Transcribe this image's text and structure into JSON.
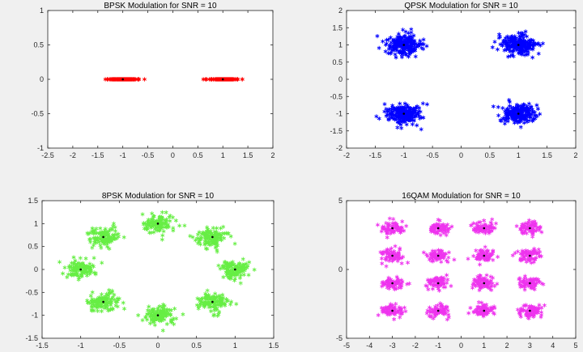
{
  "figure": {
    "background": "#f0f0f0",
    "axes_background": "#ffffff",
    "axis_color": "#262626"
  },
  "chart_data": [
    {
      "type": "scatter",
      "title": "BPSK Modulation for SNR = 10",
      "xlim": [
        -2.5,
        2
      ],
      "ylim": [
        -1,
        1
      ],
      "xticks": [
        -2.5,
        -2,
        -1.5,
        -1,
        -0.5,
        0,
        0.5,
        1,
        1.5,
        2
      ],
      "yticks": [
        -1,
        -0.5,
        0,
        0.5,
        1
      ],
      "xticklabels": [
        "-2.5",
        "-2",
        "-1.5",
        "-1",
        "-0.5",
        "0",
        "0.5",
        "1",
        "1.5",
        "2"
      ],
      "yticklabels": [
        "-1",
        "-0.5",
        "0",
        "0.5",
        "1"
      ],
      "series": [
        {
          "role": "received",
          "marker": "*",
          "color": "#ff0000",
          "cluster_centers": [
            [
              -1,
              0
            ],
            [
              1,
              0
            ]
          ],
          "spread_x": 0.3,
          "spread_y": 0,
          "points_per_cluster": 140
        },
        {
          "role": "ideal",
          "marker": ".",
          "color": "#000000",
          "points": [
            [
              -1,
              0
            ],
            [
              1,
              0
            ]
          ]
        }
      ],
      "grid": false
    },
    {
      "type": "scatter",
      "title": "QPSK Modulation for SNR = 10",
      "xlim": [
        -2,
        2
      ],
      "ylim": [
        -2,
        2
      ],
      "xticks": [
        -2,
        -1.5,
        -1,
        -0.5,
        0,
        0.5,
        1,
        1.5,
        2
      ],
      "yticks": [
        -2,
        -1.5,
        -1,
        -0.5,
        0,
        0.5,
        1,
        1.5,
        2
      ],
      "xticklabels": [
        "-2",
        "-1.5",
        "-1",
        "-0.5",
        "0",
        "0.5",
        "1",
        "1.5",
        "2"
      ],
      "yticklabels": [
        "-2",
        "-1.5",
        "-1",
        "-0.5",
        "0",
        "0.5",
        "1",
        "1.5",
        "2"
      ],
      "series": [
        {
          "role": "received",
          "marker": "*",
          "color": "#0000ff",
          "cluster_centers": [
            [
              -1,
              1
            ],
            [
              1,
              1
            ],
            [
              -1,
              -1
            ],
            [
              1,
              -1
            ]
          ],
          "spread_x": 0.3,
          "spread_y": 0.3,
          "points_per_cluster": 220
        },
        {
          "role": "ideal",
          "marker": ".",
          "color": "#000000",
          "points": [
            [
              -1,
              1
            ],
            [
              1,
              1
            ],
            [
              -1,
              -1
            ],
            [
              1,
              -1
            ]
          ]
        }
      ],
      "grid": false
    },
    {
      "type": "scatter",
      "title": "8PSK Modulation for SNR = 10",
      "xlim": [
        -1.5,
        1.5
      ],
      "ylim": [
        -1.5,
        1.5
      ],
      "xticks": [
        -1.5,
        -1,
        -0.5,
        0,
        0.5,
        1,
        1.5
      ],
      "yticks": [
        -1.5,
        -1,
        -0.5,
        0,
        0.5,
        1,
        1.5
      ],
      "xticklabels": [
        "-1.5",
        "-1",
        "-0.5",
        "0",
        "0.5",
        "1",
        "1.5"
      ],
      "yticklabels": [
        "-1.5",
        "-1",
        "-0.5",
        "0",
        "0.5",
        "1",
        "1.5"
      ],
      "series": [
        {
          "role": "received",
          "marker": "*",
          "color": "#66ee44",
          "cluster_centers": [
            [
              1,
              0
            ],
            [
              0.707,
              0.707
            ],
            [
              0,
              1
            ],
            [
              -0.707,
              0.707
            ],
            [
              -1,
              0
            ],
            [
              -0.707,
              -0.707
            ],
            [
              0,
              -1
            ],
            [
              0.707,
              -0.707
            ]
          ],
          "spread_x": 0.2,
          "spread_y": 0.2,
          "points_per_cluster": 120
        },
        {
          "role": "ideal",
          "marker": ".",
          "color": "#000000",
          "points": [
            [
              1,
              0
            ],
            [
              0.707,
              0.707
            ],
            [
              0,
              1
            ],
            [
              -0.707,
              0.707
            ],
            [
              -1,
              0
            ],
            [
              -0.707,
              -0.707
            ],
            [
              0,
              -1
            ],
            [
              0.707,
              -0.707
            ]
          ]
        }
      ],
      "grid": false
    },
    {
      "type": "scatter",
      "title": "16QAM Modulation for SNR = 10",
      "xlim": [
        -5,
        5
      ],
      "ylim": [
        -5,
        5
      ],
      "xticks": [
        -5,
        -4,
        -3,
        -2,
        -1,
        0,
        1,
        2,
        3,
        4,
        5
      ],
      "yticks": [
        -5,
        0,
        5
      ],
      "xticklabels": [
        "-5",
        "-4",
        "-3",
        "-2",
        "-1",
        "0",
        "1",
        "2",
        "3",
        "4",
        "5"
      ],
      "yticklabels": [
        "-5",
        "0",
        "5"
      ],
      "series": [
        {
          "role": "received",
          "marker": "*",
          "color": "#ee33ee",
          "cluster_centers": [
            [
              -3,
              3
            ],
            [
              -1,
              3
            ],
            [
              1,
              3
            ],
            [
              3,
              3
            ],
            [
              -3,
              1
            ],
            [
              -1,
              1
            ],
            [
              1,
              1
            ],
            [
              3,
              1
            ],
            [
              -3,
              -1
            ],
            [
              -1,
              -1
            ],
            [
              1,
              -1
            ],
            [
              3,
              -1
            ],
            [
              -3,
              -3
            ],
            [
              -1,
              -3
            ],
            [
              1,
              -3
            ],
            [
              3,
              -3
            ]
          ],
          "spread_x": 0.5,
          "spread_y": 0.45,
          "points_per_cluster": 70
        },
        {
          "role": "ideal",
          "marker": ".",
          "color": "#000000",
          "points": [
            [
              -3,
              3
            ],
            [
              -1,
              3
            ],
            [
              1,
              3
            ],
            [
              3,
              3
            ],
            [
              -3,
              1
            ],
            [
              -1,
              1
            ],
            [
              1,
              1
            ],
            [
              3,
              1
            ],
            [
              -3,
              -1
            ],
            [
              -1,
              -1
            ],
            [
              1,
              -1
            ],
            [
              3,
              -1
            ],
            [
              -3,
              -3
            ],
            [
              -1,
              -3
            ],
            [
              1,
              -3
            ],
            [
              3,
              -3
            ]
          ]
        }
      ],
      "grid": false
    }
  ]
}
